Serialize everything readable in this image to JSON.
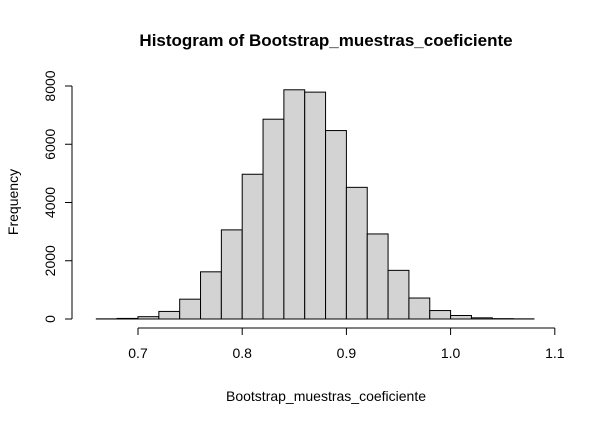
{
  "chart_data": {
    "type": "bar",
    "title": "Histogram of Bootstrap_muestras_coeficiente",
    "xlabel": "Bootstrap_muestras_coeficiente",
    "ylabel": "Frequency",
    "bin_edges": [
      0.66,
      0.68,
      0.7,
      0.72,
      0.74,
      0.76,
      0.78,
      0.8,
      0.82,
      0.84,
      0.86,
      0.88,
      0.9,
      0.92,
      0.94,
      0.96,
      0.98,
      1.0,
      1.02,
      1.04,
      1.06,
      1.08
    ],
    "values": [
      5,
      20,
      80,
      260,
      680,
      1620,
      3060,
      4970,
      6860,
      7870,
      7790,
      6470,
      4520,
      2920,
      1670,
      720,
      290,
      120,
      40,
      12,
      5
    ],
    "xlim": [
      0.66,
      1.1
    ],
    "ylim": [
      0,
      8000
    ],
    "x_ticks": [
      "0.7",
      "0.8",
      "0.9",
      "1.0",
      "1.1"
    ],
    "x_tick_values": [
      0.7,
      0.8,
      0.9,
      1.0,
      1.1
    ],
    "y_ticks": [
      "0",
      "2000",
      "4000",
      "6000",
      "8000"
    ],
    "y_tick_values": [
      0,
      2000,
      4000,
      6000,
      8000
    ],
    "grid": false
  }
}
